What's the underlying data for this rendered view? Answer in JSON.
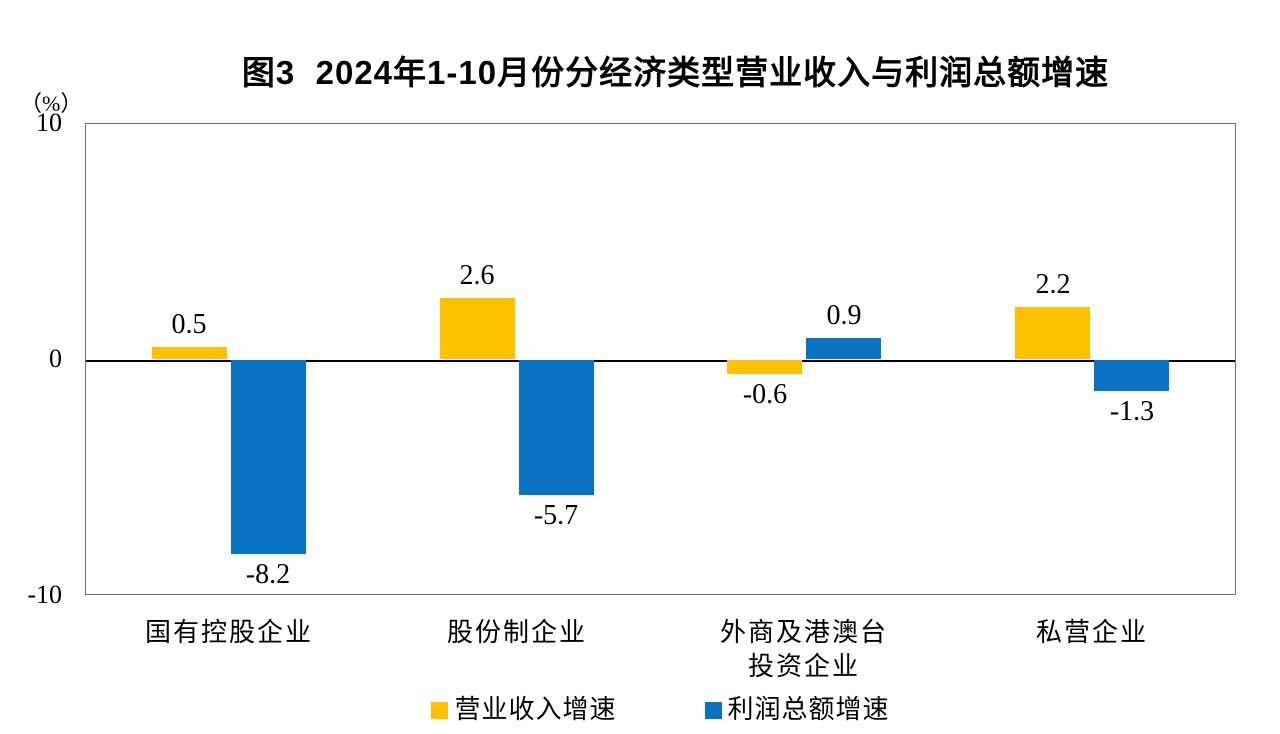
{
  "chart_data": {
    "type": "bar",
    "title": "图3  2024年1-10月份分经济类型营业收入与利润总额增速",
    "unit_label": "（%）",
    "categories": [
      "国有控股企业",
      "股份制企业",
      "外商及港澳台\n投资企业",
      "私营企业"
    ],
    "series": [
      {
        "name": "营业收入增速",
        "color": "#FFC000",
        "values": [
          0.5,
          2.6,
          -0.6,
          2.2
        ]
      },
      {
        "name": "利润总额增速",
        "color": "#0A73C1",
        "values": [
          -8.2,
          -5.7,
          0.9,
          -1.3
        ]
      }
    ],
    "ylim": [
      -10,
      10
    ],
    "yticks": [
      10,
      0,
      -10
    ],
    "grid": false,
    "legend_position": "bottom",
    "value_label_decimals": 1
  }
}
